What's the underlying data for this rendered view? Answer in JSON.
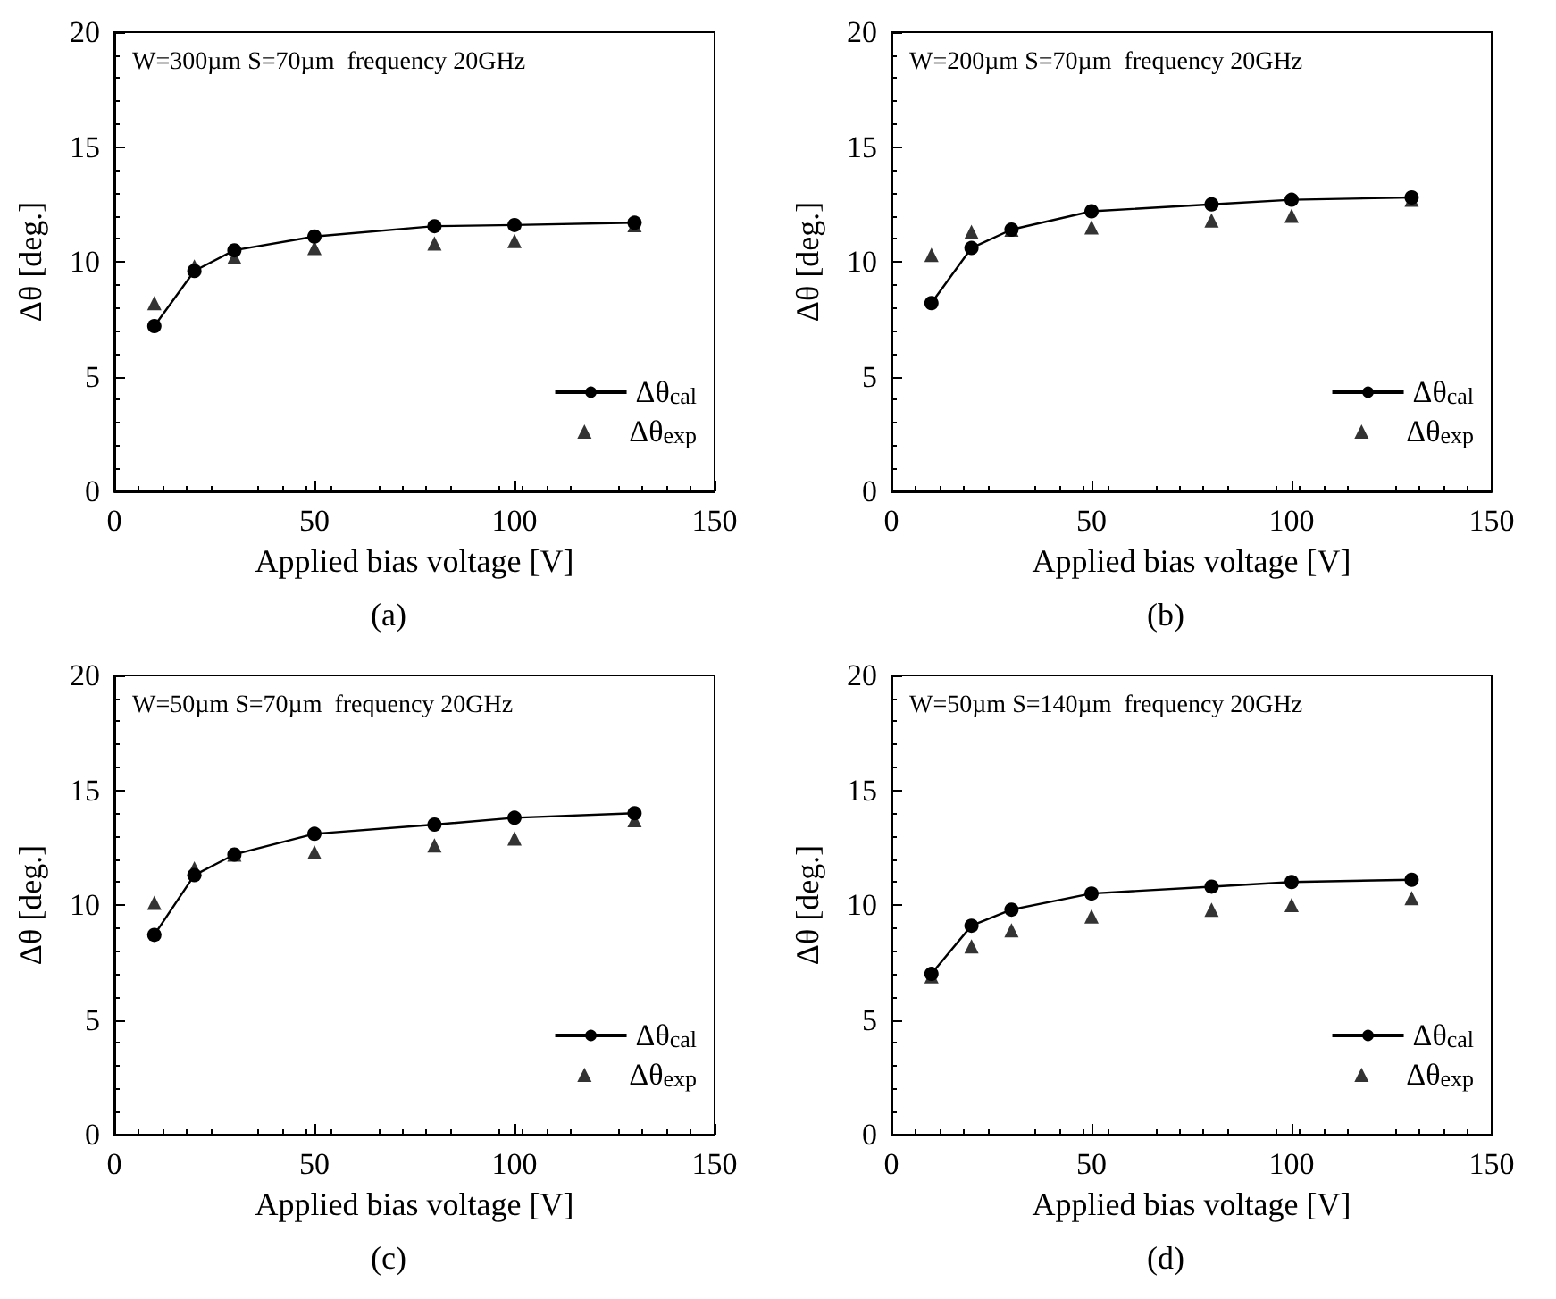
{
  "chart_data": [
    {
      "type": "line",
      "title": "(a)",
      "xlabel": "Applied bias voltage [V]",
      "ylabel": "Δθ [deg.]",
      "annotations": [
        "W=300µm S=70µm  frequency 20GHz"
      ],
      "x": [
        10,
        20,
        30,
        50,
        80,
        100,
        130
      ],
      "xlim": [
        0,
        150
      ],
      "xticks": [
        0,
        50,
        100,
        150
      ],
      "ylim": [
        0,
        20
      ],
      "yticks": [
        0,
        5,
        10,
        15,
        20
      ],
      "grid": false,
      "legend": "bottom right",
      "series": [
        {
          "name": "Δθ$_{cal}$",
          "type": "line",
          "marker": "circle",
          "color": "#000000",
          "values": [
            7.2,
            9.6,
            10.5,
            11.1,
            11.55,
            11.6,
            11.7
          ]
        },
        {
          "name": "Δθ$_{exp}$",
          "type": "scatter",
          "marker": "triangle",
          "color": "#000000",
          "values": [
            8.2,
            9.8,
            10.2,
            10.6,
            10.8,
            10.9,
            11.6
          ]
        }
      ]
    },
    {
      "type": "line",
      "title": "(b)",
      "xlabel": "Applied bias voltage [V]",
      "ylabel": "Δθ [deg.]",
      "annotations": [
        "W=200µm S=70µm  frequency 20GHz"
      ],
      "x": [
        10,
        20,
        30,
        50,
        80,
        100,
        130
      ],
      "xlim": [
        0,
        150
      ],
      "xticks": [
        0,
        50,
        100,
        150
      ],
      "ylim": [
        0,
        20
      ],
      "yticks": [
        0,
        5,
        10,
        15,
        20
      ],
      "grid": false,
      "legend": "bottom right",
      "series": [
        {
          "name": "Δθ$_{cal}$",
          "type": "line",
          "marker": "circle",
          "color": "#000000",
          "values": [
            8.2,
            10.6,
            11.4,
            12.2,
            12.5,
            12.7,
            12.8
          ]
        },
        {
          "name": "Δθ$_{exp}$",
          "type": "scatter",
          "marker": "triangle",
          "color": "#000000",
          "values": [
            10.3,
            11.3,
            11.4,
            11.5,
            11.8,
            12.0,
            12.7
          ]
        }
      ]
    },
    {
      "type": "line",
      "title": "(c)",
      "xlabel": "Applied bias voltage [V]",
      "ylabel": "Δθ [deg.]",
      "annotations": [
        "W=50µm S=70µm  frequency 20GHz"
      ],
      "x": [
        10,
        20,
        30,
        50,
        80,
        100,
        130
      ],
      "xlim": [
        0,
        150
      ],
      "xticks": [
        0,
        50,
        100,
        150
      ],
      "ylim": [
        0,
        20
      ],
      "yticks": [
        0,
        5,
        10,
        15,
        20
      ],
      "grid": false,
      "legend": "bottom right",
      "series": [
        {
          "name": "Δθ$_{cal}$",
          "type": "line",
          "marker": "circle",
          "color": "#000000",
          "values": [
            8.7,
            11.3,
            12.2,
            13.1,
            13.5,
            13.8,
            14.0
          ]
        },
        {
          "name": "Δθ$_{exp}$",
          "type": "scatter",
          "marker": "triangle",
          "color": "#000000",
          "values": [
            10.1,
            11.6,
            12.2,
            12.3,
            12.6,
            12.9,
            13.7
          ]
        }
      ]
    },
    {
      "type": "line",
      "title": "(d)",
      "xlabel": "Applied bias voltage [V]",
      "ylabel": "Δθ [deg.]",
      "annotations": [
        "W=50µm S=140µm  frequency 20GHz"
      ],
      "x": [
        10,
        20,
        30,
        50,
        80,
        100,
        130
      ],
      "xlim": [
        0,
        150
      ],
      "xticks": [
        0,
        50,
        100,
        150
      ],
      "ylim": [
        0,
        20
      ],
      "yticks": [
        0,
        5,
        10,
        15,
        20
      ],
      "grid": false,
      "legend": "bottom right",
      "series": [
        {
          "name": "Δθ$_{cal}$",
          "type": "line",
          "marker": "circle",
          "color": "#000000",
          "values": [
            7.0,
            9.1,
            9.8,
            10.5,
            10.8,
            11.0,
            11.1
          ]
        },
        {
          "name": "Δθ$_{exp}$",
          "type": "scatter",
          "marker": "triangle",
          "color": "#000000",
          "values": [
            6.9,
            8.2,
            8.9,
            9.5,
            9.8,
            10.0,
            10.3
          ]
        }
      ]
    }
  ]
}
